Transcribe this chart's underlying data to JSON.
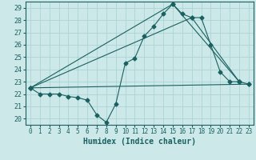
{
  "xlabel": "Humidex (Indice chaleur)",
  "xlim": [
    -0.5,
    23.5
  ],
  "ylim": [
    19.5,
    29.5
  ],
  "xticks": [
    0,
    1,
    2,
    3,
    4,
    5,
    6,
    7,
    8,
    9,
    10,
    11,
    12,
    13,
    14,
    15,
    16,
    17,
    18,
    19,
    20,
    21,
    22,
    23
  ],
  "yticks": [
    20,
    21,
    22,
    23,
    24,
    25,
    26,
    27,
    28,
    29
  ],
  "bg_color": "#cce8e8",
  "grid_color": "#aad4d4",
  "line_color": "#1a6060",
  "line1_x": [
    0,
    1,
    2,
    3,
    4,
    5,
    6,
    7,
    8,
    9,
    10,
    11,
    12,
    13,
    14,
    15,
    16,
    17,
    18,
    19,
    20,
    21,
    22,
    23
  ],
  "line1_y": [
    22.5,
    22.0,
    22.0,
    22.0,
    21.8,
    21.7,
    21.5,
    20.3,
    19.7,
    21.2,
    24.5,
    24.9,
    26.7,
    27.5,
    28.5,
    29.3,
    28.5,
    28.2,
    28.2,
    26.0,
    23.8,
    23.0,
    23.0,
    22.8
  ],
  "line2_x": [
    0,
    15,
    22
  ],
  "line2_y": [
    22.5,
    29.3,
    23.0
  ],
  "line3_x": [
    0,
    17,
    22
  ],
  "line3_y": [
    22.5,
    28.2,
    23.0
  ],
  "line4_x": [
    0,
    23
  ],
  "line4_y": [
    22.5,
    22.8
  ],
  "markersize": 2.5,
  "linewidth": 0.8
}
